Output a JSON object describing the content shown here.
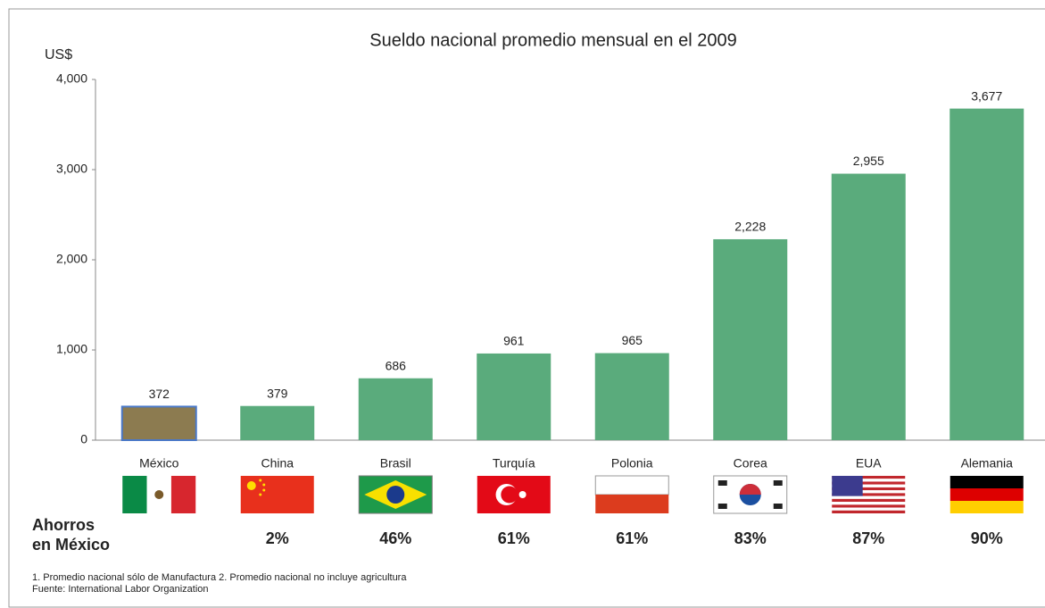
{
  "chart_data": {
    "type": "bar",
    "title": "Sueldo nacional promedio mensual en el 2009",
    "y_label": "US$",
    "categories": [
      "México",
      "China",
      "Brasil",
      "Turquía",
      "Polonia",
      "Corea",
      "EUA",
      "Alemania"
    ],
    "values": [
      372,
      379,
      686,
      961,
      965,
      2228,
      2955,
      3677
    ],
    "value_labels": [
      "372",
      "379",
      "686",
      "961",
      "965",
      "2,228",
      "2,955",
      "3,677"
    ],
    "colors": [
      "#8c7b50",
      "#5aab7c",
      "#5aab7c",
      "#5aab7c",
      "#5aab7c",
      "#5aab7c",
      "#5aab7c",
      "#5aab7c"
    ],
    "ylim": [
      0,
      4000
    ],
    "yticks": [
      0,
      {
        "value": 1000,
        "label": "1,000"
      },
      {
        "value": 2000,
        "label": "2,000"
      },
      {
        "value": 3000,
        "label": "3,000"
      },
      {
        "value": 4000,
        "label": "4,000"
      }
    ],
    "savings": {
      "label": [
        "Ahorros",
        "en México"
      ],
      "values": [
        null,
        2,
        46,
        61,
        61,
        83,
        87,
        90
      ],
      "value_labels": [
        null,
        "2%",
        "46%",
        "61%",
        "61%",
        "83%",
        "87%",
        "90%"
      ]
    },
    "footnotes": [
      "1. Promedio nacional sólo de Manufactura 2. Promedio nacional no incluye agricultura",
      "Fuente: International Labor Organization"
    ]
  }
}
